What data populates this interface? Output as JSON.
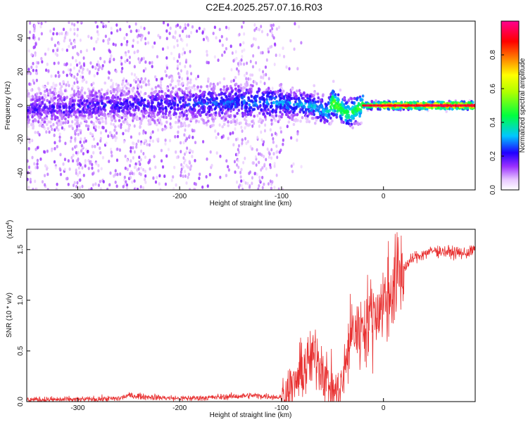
{
  "title": "C2E4.2025.257.07.16.R03",
  "chart_data": [
    {
      "type": "heatmap",
      "xlabel": "Height of straight line (km)",
      "ylabel": "Frequency (Hz)",
      "xlim": [
        -350,
        90
      ],
      "ylim": [
        -50,
        50
      ],
      "xticks": [
        -300,
        -200,
        -100,
        0
      ],
      "yticks": [
        -40,
        -20,
        0,
        20,
        40
      ],
      "colorbar": {
        "label": "Normalized spectral amplitude",
        "range": [
          0,
          1
        ],
        "ticks": [
          "0.0",
          "0.2",
          "0.4",
          "0.6",
          "0.8"
        ],
        "colors": [
          "#ffffff",
          "#e0b0ff",
          "#8000ff",
          "#0000ff",
          "#00ffff",
          "#00ff00",
          "#ffff00",
          "#ff8000",
          "#ff0000",
          "#ff00a0"
        ]
      },
      "ridge": [
        {
          "x": -350,
          "f": -2,
          "amp": 0.18
        },
        {
          "x": -270,
          "f": 0,
          "amp": 0.2
        },
        {
          "x": -200,
          "f": 1,
          "amp": 0.22
        },
        {
          "x": -120,
          "f": 2,
          "amp": 0.28
        },
        {
          "x": -70,
          "f": 0,
          "amp": 0.32
        },
        {
          "x": -55,
          "f": -4,
          "amp": 0.35
        },
        {
          "x": -50,
          "f": 2,
          "amp": 0.55
        },
        {
          "x": -35,
          "f": -5,
          "amp": 0.45
        },
        {
          "x": -20,
          "f": 0,
          "amp": 0.5
        },
        {
          "x": 0,
          "f": 0,
          "amp": 0.85
        },
        {
          "x": 90,
          "f": 0,
          "amp": 0.95
        }
      ]
    },
    {
      "type": "line",
      "xlabel": "Height of straight line (km)",
      "ylabel": "SNR (10 * v/v)",
      "yscale_label": "(x10",
      "yscale_exp": "4",
      "xlim": [
        -350,
        90
      ],
      "ylim": [
        0,
        1.7
      ],
      "xticks": [
        -300,
        -200,
        -100,
        0
      ],
      "yticks": [
        "0.0",
        "0.5",
        "1.0",
        "1.5"
      ],
      "line_color": "#e83030",
      "series": [
        {
          "x": [
            -350,
            -300,
            -260,
            -250,
            -220,
            -200,
            -170,
            -150,
            -130,
            -110,
            -100,
            -90,
            -80,
            -70,
            -65,
            -60,
            -55,
            -50,
            -45,
            -40,
            -35,
            -30,
            -25,
            -20,
            -15,
            -10,
            -5,
            0,
            10,
            20,
            30,
            40,
            50,
            60,
            70,
            80,
            90
          ],
          "y": [
            0.02,
            0.02,
            0.03,
            0.06,
            0.04,
            0.03,
            0.04,
            0.05,
            0.06,
            0.05,
            0.04,
            0.12,
            0.3,
            0.42,
            0.45,
            0.35,
            0.2,
            0.12,
            0.08,
            0.18,
            0.5,
            0.72,
            0.68,
            0.75,
            0.82,
            0.85,
            0.92,
            0.96,
            1.15,
            1.32,
            1.42,
            1.46,
            1.49,
            1.48,
            1.47,
            1.46,
            1.5
          ]
        }
      ]
    }
  ]
}
